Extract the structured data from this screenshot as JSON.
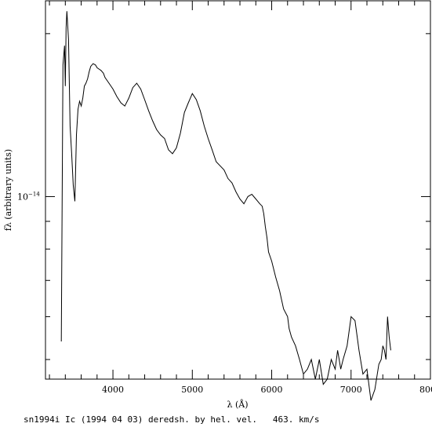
{
  "chart_data": {
    "type": "line",
    "xlabel": "λ (Å)",
    "ylabel": "fλ (arbitrary units)",
    "xlim": [
      3150,
      8000
    ],
    "ylim": [
      4.6e-15,
      2.3e-14
    ],
    "yscale": "log",
    "x_ticks": [
      4000,
      5000,
      6000,
      7000,
      8000
    ],
    "y_tick_labels": [
      {
        "value": 1e-14,
        "base": "10",
        "exp": "−14"
      }
    ],
    "grid": false,
    "legend": "none",
    "color": "#000000",
    "series": [
      {
        "x": [
          3350,
          3370,
          3390,
          3400,
          3410,
          3420,
          3440,
          3460,
          3480,
          3500,
          3520,
          3540,
          3560,
          3580,
          3600,
          3620,
          3640,
          3660,
          3680,
          3700,
          3720,
          3750,
          3780,
          3800,
          3850,
          3880,
          3900,
          3950,
          4000,
          4050,
          4100,
          4150,
          4200,
          4250,
          4300,
          4350,
          4400,
          4450,
          4500,
          4550,
          4600,
          4650,
          4700,
          4750,
          4800,
          4850,
          4900,
          4950,
          5000,
          5050,
          5100,
          5150,
          5200,
          5250,
          5300,
          5350,
          5400,
          5450,
          5500,
          5550,
          5600,
          5650,
          5700,
          5750,
          5800,
          5850,
          5880,
          5900,
          5920,
          5940,
          5960,
          6000,
          6050,
          6100,
          6150,
          6200,
          6220,
          6250,
          6300,
          6350,
          6400,
          6450,
          6500,
          6550,
          6600,
          6650,
          6700,
          6750,
          6800,
          6830,
          6850,
          6870,
          6900,
          6950,
          7000,
          7050,
          7100,
          7150,
          7200,
          7250,
          7300,
          7350,
          7380,
          7400,
          7420,
          7440,
          7460,
          7480,
          7500
        ],
        "y": [
          5.4e-15,
          1.75e-14,
          1.9e-14,
          1.6e-14,
          2.05e-14,
          2.2e-14,
          1.95e-14,
          1.35e-14,
          1.2e-14,
          1.05e-14,
          9.8e-15,
          1.3e-14,
          1.45e-14,
          1.5e-14,
          1.47e-14,
          1.52e-14,
          1.6e-14,
          1.62e-14,
          1.65e-14,
          1.7e-14,
          1.74e-14,
          1.76e-14,
          1.75e-14,
          1.73e-14,
          1.71e-14,
          1.69e-14,
          1.66e-14,
          1.62e-14,
          1.58e-14,
          1.53e-14,
          1.49e-14,
          1.47e-14,
          1.52e-14,
          1.59e-14,
          1.62e-14,
          1.58e-14,
          1.51e-14,
          1.44e-14,
          1.38e-14,
          1.33e-14,
          1.3e-14,
          1.28e-14,
          1.22e-14,
          1.2e-14,
          1.23e-14,
          1.31e-14,
          1.43e-14,
          1.49e-14,
          1.55e-14,
          1.51e-14,
          1.44e-14,
          1.35e-14,
          1.28e-14,
          1.22e-14,
          1.16e-14,
          1.14e-14,
          1.12e-14,
          1.08e-14,
          1.06e-14,
          1.02e-14,
          9.9e-15,
          9.7e-15,
          1e-14,
          1.01e-14,
          9.9e-15,
          9.7e-15,
          9.6e-15,
          9.3e-15,
          8.8e-15,
          8.4e-15,
          7.9e-15,
          7.6e-15,
          7.1e-15,
          6.7e-15,
          6.2e-15,
          6e-15,
          5.7e-15,
          5.5e-15,
          5.3e-15,
          5e-15,
          4.7e-15,
          4.8e-15,
          5e-15,
          4.6e-15,
          5e-15,
          4.5e-15,
          4.6e-15,
          5e-15,
          4.8e-15,
          5.2e-15,
          5e-15,
          4.8e-15,
          5e-15,
          5.3e-15,
          6e-15,
          5.9e-15,
          5.2e-15,
          4.7e-15,
          4.8e-15,
          4.2e-15,
          4.4e-15,
          4.9e-15,
          5e-15,
          5.3e-15,
          5.2e-15,
          5e-15,
          6e-15,
          5.5e-15,
          5.2e-15
        ]
      }
    ]
  },
  "caption": "sn1994i Ic (1994 04 03) deredsh. by hel. vel.   463. km/s"
}
